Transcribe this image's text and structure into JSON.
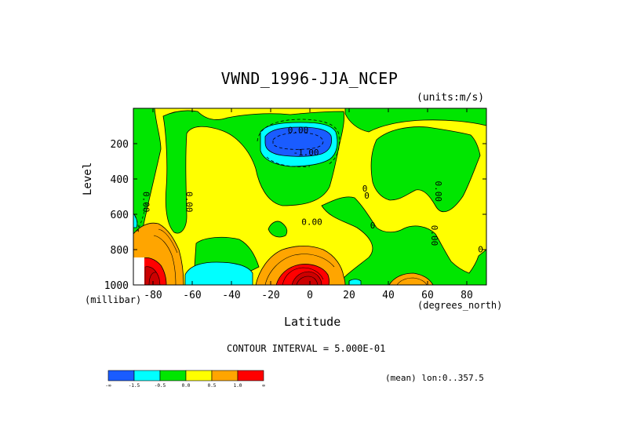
{
  "chart_data": {
    "type": "heatmap",
    "subtype": "filled-contour",
    "title": "VWND_1996-JJA_NCEP",
    "units": "(units:m/s)",
    "xlabel": "Latitude",
    "x_units": "(degrees_north)",
    "ylabel": "Level",
    "y_units": "(millibar)",
    "xlim": [
      -90,
      90
    ],
    "ylim": [
      1000,
      0
    ],
    "x_ticks": [
      -80,
      -60,
      -40,
      -20,
      0,
      20,
      40,
      60,
      80
    ],
    "x_tick_labels": [
      "-80",
      "-60",
      "-40",
      "-20",
      "0",
      "20",
      "40",
      "60",
      "80"
    ],
    "y_ticks": [
      200,
      400,
      600,
      800,
      1000
    ],
    "y_tick_labels": [
      "200",
      "400",
      "600",
      "800",
      "1000"
    ],
    "contour_interval_text": "CONTOUR INTERVAL = 5.000E-01",
    "footer_text": "(mean) lon:0..357.5",
    "contour_labels": [
      {
        "text": "0.00",
        "x": -6,
        "y": 140
      },
      {
        "text": "-1.00",
        "x": -2,
        "y": 266
      },
      {
        "text": "0.00",
        "x": -85,
        "y": 530
      },
      {
        "text": "0.00",
        "x": -63,
        "y": 530
      },
      {
        "text": "0",
        "x": 28,
        "y": 470
      },
      {
        "text": "0",
        "x": 29,
        "y": 510
      },
      {
        "text": "0.00",
        "x": 1,
        "y": 660
      },
      {
        "text": "0",
        "x": 32,
        "y": 680
      },
      {
        "text": "0.00",
        "x": 64,
        "y": 470
      },
      {
        "text": "0.00",
        "x": 62,
        "y": 720
      },
      {
        "text": "0",
        "x": 87,
        "y": 815
      }
    ],
    "colorbar": {
      "levels": [
        "-∞",
        "-1.5",
        "-0.5",
        "0.0",
        "0.5",
        "1.0",
        "∞"
      ],
      "colors": [
        "#1a5cff",
        "#00ffff",
        "#00e600",
        "#ffff00",
        "#ffa500",
        "#ff0000"
      ]
    },
    "regions": [
      {
        "level": "0 to 0.5",
        "color": "#ffff00",
        "desc": "background field"
      },
      {
        "level": "-0.5 to 0",
        "color": "#00e600",
        "desc": "mid-troposphere negative bands"
      },
      {
        "level": "< -1.5",
        "color": "#1a5cff",
        "desc": "upper-level jet near equator",
        "x_range": [
          -28,
          8
        ],
        "y_range": [
          70,
          280
        ]
      },
      {
        "level": "-1.5 to -0.5",
        "color": "#00ffff",
        "desc": "near-surface southern mid-latitudes",
        "x_range": [
          -62,
          -32
        ],
        "y_range": [
          880,
          1000
        ]
      },
      {
        "level": "0.5 to 1.0",
        "color": "#ffa500",
        "desc": "low-level flow",
        "x_range": [
          -28,
          18
        ],
        "y_range": [
          780,
          1000
        ]
      },
      {
        "level": "> 1.0",
        "color": "#ff0000",
        "desc": "low-level maximum",
        "x_range": [
          -18,
          8
        ],
        "y_range": [
          880,
          1000
        ]
      }
    ]
  }
}
